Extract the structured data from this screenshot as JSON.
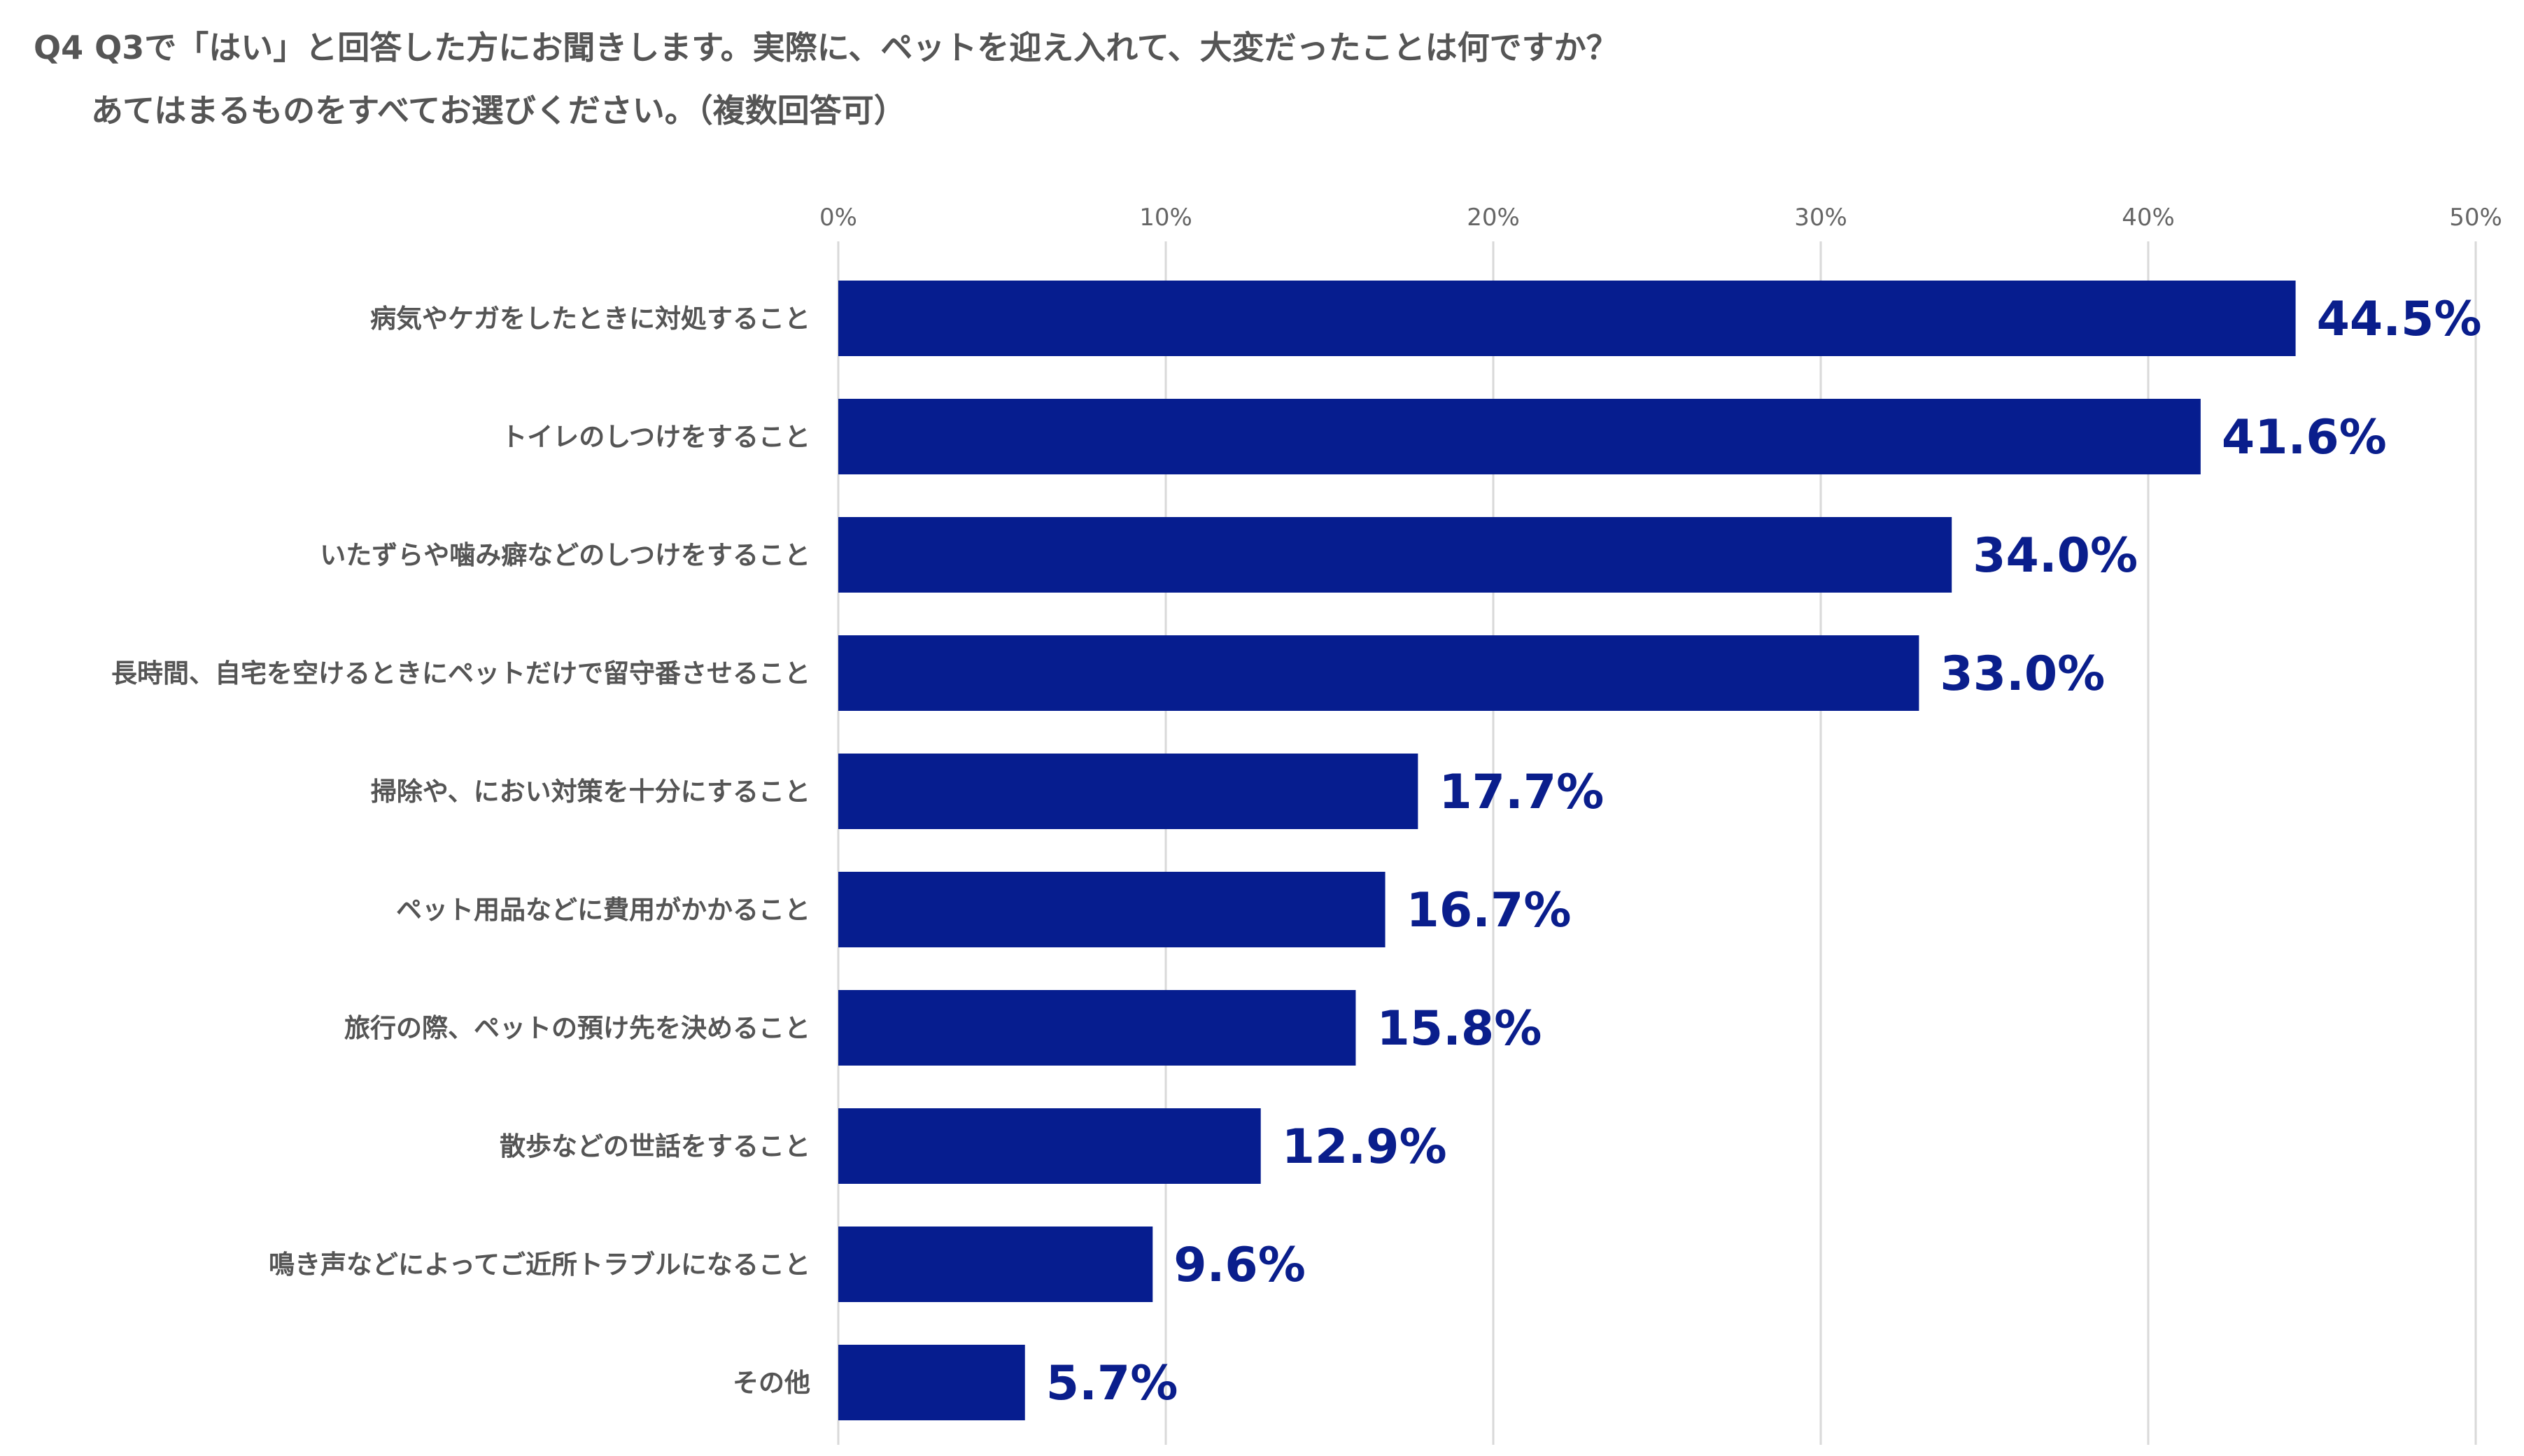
{
  "chart_data": {
    "type": "bar",
    "orientation": "horizontal",
    "title": {
      "line1": "Q4 Q3で「はい」と回答した方にお聞きします。実際に、ペットを迎え入れて、大変だったことは何ですか？",
      "line2": "あてはまるものをすべてお選びください。（複数回答可）"
    },
    "categories": [
      "病気やケガをしたときに対処すること",
      "トイレのしつけをすること",
      "いたずらや噛み癖などのしつけをすること",
      "長時間、自宅を空けるときにペットだけで留守番させること",
      "掃除や、におい対策を十分にすること",
      "ペット用品などに費用がかかること",
      "旅行の際、ペットの預け先を決めること",
      "散歩などの世話をすること",
      "鳴き声などによってご近所トラブルになること",
      "その他"
    ],
    "values": [
      44.5,
      41.6,
      34.0,
      33.0,
      17.7,
      16.7,
      15.8,
      12.9,
      9.6,
      5.7
    ],
    "value_labels": [
      "44.5%",
      "41.6%",
      "34.0%",
      "33.0%",
      "17.7%",
      "16.7%",
      "15.8%",
      "12.9%",
      "9.6%",
      "5.7%"
    ],
    "xlim": [
      0,
      50
    ],
    "ticks": [
      0,
      10,
      20,
      30,
      40,
      50
    ],
    "tick_labels": [
      "0%",
      "10%",
      "20%",
      "30%",
      "40%",
      "50%"
    ],
    "grid": true,
    "xaxis_position": "top",
    "xlabel": "",
    "ylabel": "",
    "colors": {
      "bar": "#061D8F",
      "value_label": "#0A1E8C",
      "grid": "#D9D9D9",
      "category_text": "#555555",
      "tick_text": "#666666"
    }
  }
}
